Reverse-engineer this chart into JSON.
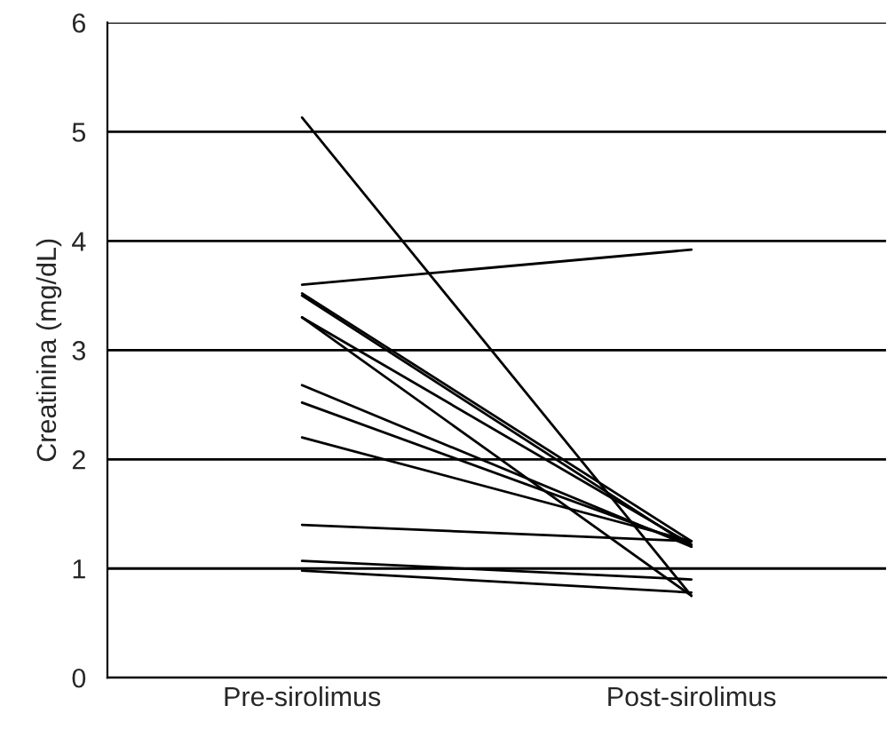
{
  "chart_data": {
    "type": "line",
    "ylabel": "Creatinina (mg/dL)",
    "categories": [
      "Pre-sirolimus",
      "Post-sirolimus"
    ],
    "series": [
      {
        "color": "#000000",
        "values": [
          5.13,
          0.75
        ]
      },
      {
        "color": "#000000",
        "values": [
          3.6,
          3.92
        ]
      },
      {
        "color": "#000000",
        "values": [
          3.52,
          1.25
        ]
      },
      {
        "color": "#000000",
        "values": [
          3.5,
          1.2
        ]
      },
      {
        "color": "#000000",
        "values": [
          3.3,
          1.22
        ]
      },
      {
        "color": "#000000",
        "values": [
          3.3,
          0.75
        ]
      },
      {
        "color": "#000000",
        "values": [
          2.68,
          1.2
        ]
      },
      {
        "color": "#000000",
        "values": [
          2.52,
          1.22
        ]
      },
      {
        "color": "#000000",
        "values": [
          2.2,
          1.25
        ]
      },
      {
        "color": "#000000",
        "values": [
          1.4,
          1.25
        ]
      },
      {
        "color": "#000000",
        "values": [
          1.07,
          0.9
        ]
      },
      {
        "color": "#000000",
        "values": [
          0.98,
          0.78
        ]
      }
    ],
    "ylim": [
      0,
      6
    ],
    "yticks": [
      0,
      1,
      2,
      3,
      4,
      5,
      6
    ],
    "grid": "y",
    "legend": false,
    "marker": "none",
    "line_style": "solid"
  }
}
